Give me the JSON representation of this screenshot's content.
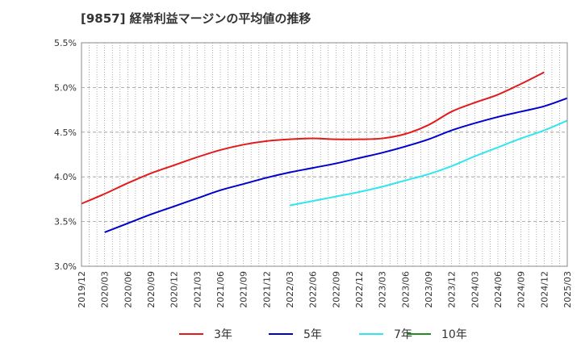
{
  "chart_data": {
    "type": "line",
    "title": "[9857]  経常利益マージンの平均値の推移",
    "x_categories": [
      "2019/12",
      "2020/03",
      "2020/06",
      "2020/09",
      "2020/12",
      "2021/03",
      "2021/06",
      "2021/09",
      "2021/12",
      "2022/03",
      "2022/06",
      "2022/09",
      "2022/12",
      "2023/03",
      "2023/06",
      "2023/09",
      "2023/12",
      "2024/03",
      "2024/06",
      "2024/09",
      "2024/12",
      "2025/03"
    ],
    "y_ticks": [
      "3.0%",
      "3.5%",
      "4.0%",
      "4.5%",
      "5.0%",
      "5.5%"
    ],
    "ylim": [
      3.0,
      5.5
    ],
    "y_unit": "%",
    "grid": true,
    "legend_position": "bottom",
    "series": [
      {
        "name": "3年",
        "color": "#e31a1c",
        "values": [
          3.7,
          3.81,
          3.93,
          4.04,
          4.13,
          4.22,
          4.3,
          4.36,
          4.4,
          4.42,
          4.43,
          4.42,
          4.42,
          4.43,
          4.48,
          4.58,
          4.73,
          4.83,
          4.92,
          5.04,
          5.17,
          null
        ]
      },
      {
        "name": "5年",
        "color": "#0000cc",
        "values": [
          null,
          3.38,
          3.48,
          3.58,
          3.67,
          3.76,
          3.85,
          3.92,
          3.99,
          4.05,
          4.1,
          4.15,
          4.21,
          4.27,
          4.34,
          4.42,
          4.52,
          4.6,
          4.67,
          4.73,
          4.79,
          4.88
        ]
      },
      {
        "name": "7年",
        "color": "#33e5ee",
        "values": [
          null,
          null,
          null,
          null,
          null,
          null,
          null,
          null,
          null,
          3.68,
          3.73,
          3.78,
          3.83,
          3.89,
          3.96,
          4.03,
          4.12,
          4.23,
          4.33,
          4.43,
          4.52,
          4.63
        ]
      },
      {
        "name": "10年",
        "color": "#228b22",
        "values": []
      }
    ]
  }
}
